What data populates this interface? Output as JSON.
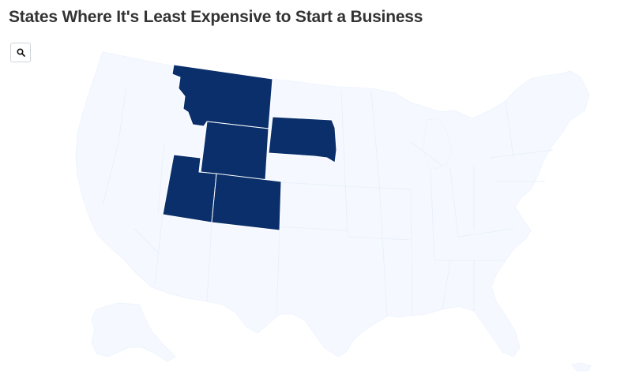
{
  "title": "States Where It's Least Expensive to Start a Business",
  "search": {
    "icon": "search-icon"
  },
  "colors": {
    "highlight": "#0a2f6b",
    "base": "#f5f9ff",
    "title": "#333333"
  },
  "highlighted_states": [
    "Montana",
    "Wyoming",
    "South Dakota",
    "Utah",
    "Colorado"
  ]
}
